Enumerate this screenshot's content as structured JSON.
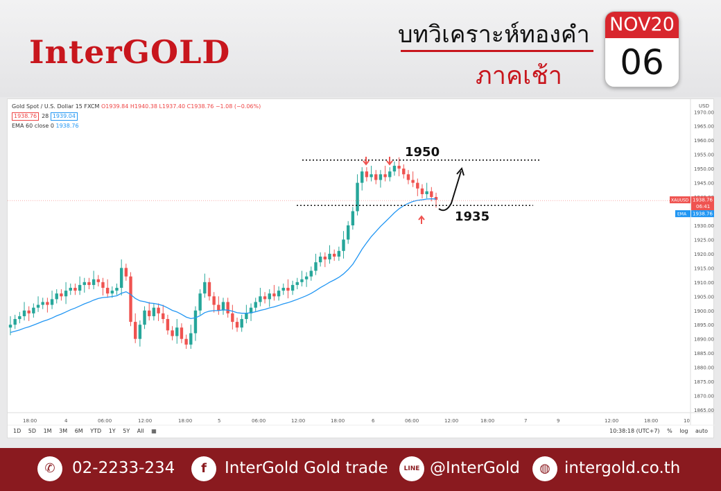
{
  "header": {
    "logo": "InterGOLD",
    "title": "บทวิเคราะห์ทองคำ",
    "subtitle": "ภาคเช้า",
    "cal_month": "NOV20",
    "cal_day": "06"
  },
  "legend": {
    "symbol": "Gold Spot / U.S. Dollar  15  FXCM",
    "ohlc": "O1939.84 H1940.38 L1937.40 C1938.76 −1.08 (−0.06%)",
    "bid": "1938.76",
    "spread": "28",
    "ask": "1939.04",
    "ema_label": "EMA 60 close 0",
    "ema_value": "1938.76"
  },
  "toolbar": {
    "timeframes": [
      "1D",
      "5D",
      "1M",
      "3M",
      "6M",
      "YTD",
      "1Y",
      "5Y",
      "All"
    ],
    "clock": "10:38:18 (UTC+7)",
    "pct": "%",
    "log": "log",
    "auto": "auto"
  },
  "chart_data": {
    "type": "candlestick",
    "currency": "USD",
    "y_ticks": [
      1865,
      1870,
      1875,
      1880,
      1885,
      1890,
      1895,
      1900,
      1905,
      1910,
      1915,
      1920,
      1925,
      1930,
      1935,
      1940,
      1945,
      1950,
      1955,
      1960,
      1965,
      1970
    ],
    "x_tick_labels": [
      "18:00",
      "4",
      "06:00",
      "12:00",
      "18:00",
      "5",
      "06:00",
      "12:00",
      "18:00",
      "6",
      "06:00",
      "12:00",
      "18:00",
      "7",
      "9",
      "12:00",
      "18:00",
      "10"
    ],
    "levels": [
      {
        "label": "1950",
        "value": 1953
      },
      {
        "label": "1935",
        "value": 1938
      }
    ],
    "price_label": "XAUUSD",
    "price_value": "1938.76",
    "countdown": "06:41",
    "ema_label": "EMA",
    "ema_value": "1938.76",
    "close_series": [
      1895,
      1897,
      1898,
      1900,
      1899,
      1901,
      1902,
      1903,
      1902,
      1904,
      1906,
      1905,
      1907,
      1908,
      1907,
      1909,
      1910,
      1909,
      1911,
      1910,
      1908,
      1906,
      1907,
      1908,
      1915,
      1912,
      1896,
      1890,
      1895,
      1900,
      1898,
      1901,
      1899,
      1897,
      1893,
      1891,
      1894,
      1890,
      1888,
      1892,
      1900,
      1906,
      1910,
      1905,
      1902,
      1900,
      1903,
      1899,
      1896,
      1894,
      1897,
      1899,
      1901,
      1903,
      1905,
      1904,
      1906,
      1905,
      1907,
      1908,
      1907,
      1909,
      1910,
      1911,
      1912,
      1914,
      1917,
      1919,
      1918,
      1920,
      1919,
      1921,
      1925,
      1930,
      1935,
      1945,
      1949,
      1947,
      1948,
      1946,
      1948,
      1947,
      1949,
      1951,
      1950,
      1948,
      1946,
      1945,
      1943,
      1941,
      1942,
      1940,
      1939
    ]
  },
  "footer": {
    "phone": "02-2233-234",
    "facebook": "InterGold Gold trade",
    "line": "@InterGold",
    "web": "intergold.co.th",
    "line_icon_text": "LINE"
  }
}
